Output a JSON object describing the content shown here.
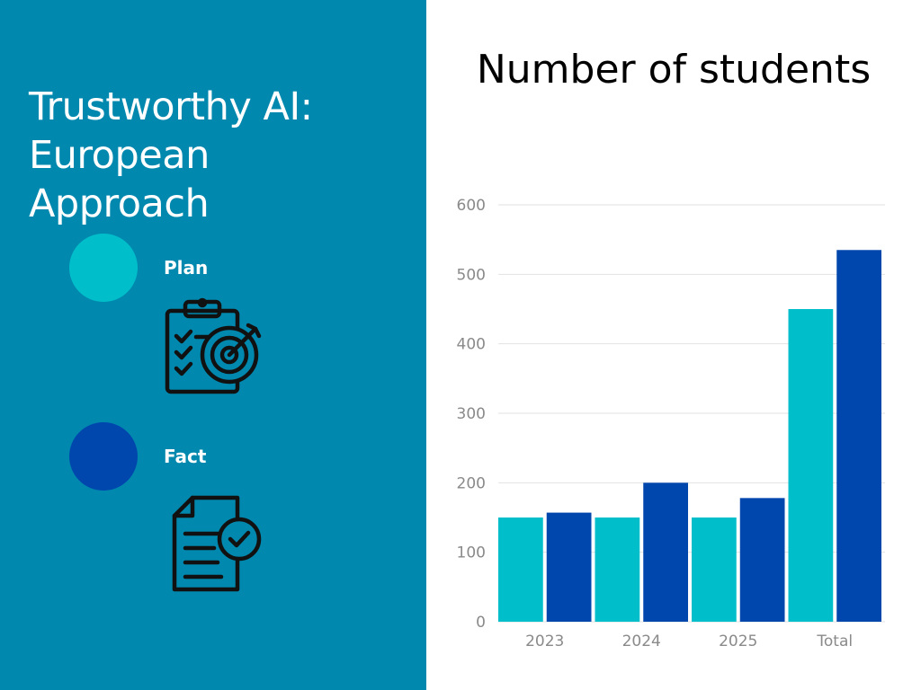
{
  "left_panel": {
    "title_lines": [
      "Trustworthy AI:",
      "European",
      "Approach"
    ],
    "legend": [
      {
        "label": "Plan",
        "color": "#00bfca",
        "icon": "clipboard-target-icon"
      },
      {
        "label": "Fact",
        "color": "#0047ad",
        "icon": "document-check-icon"
      }
    ],
    "background": "#0088ae"
  },
  "chart_data": {
    "type": "bar",
    "title": "Number of students",
    "categories": [
      "2023",
      "2024",
      "2025",
      "Total"
    ],
    "series": [
      {
        "name": "Plan",
        "color": "#00bfca",
        "values": [
          150,
          150,
          150,
          450
        ]
      },
      {
        "name": "Fact",
        "color": "#0047ad",
        "values": [
          157,
          200,
          178,
          535
        ]
      }
    ],
    "ylim": [
      0,
      600
    ],
    "yticks": [
      0,
      100,
      200,
      300,
      400,
      500,
      600
    ],
    "xlabel": "",
    "ylabel": "",
    "grid": true,
    "legend_placement": "left panel"
  }
}
